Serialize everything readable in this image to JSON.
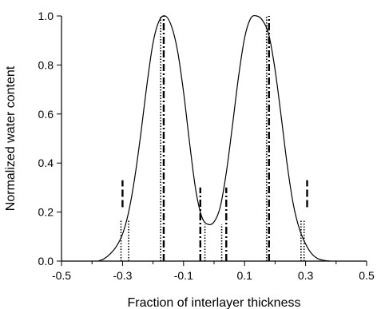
{
  "chart_data": {
    "type": "line",
    "title": "",
    "xlabel": "Fraction of interlayer thickness",
    "ylabel": "Normalized water content",
    "xlim": [
      -0.5,
      0.5
    ],
    "ylim": [
      0.0,
      1.0
    ],
    "x_ticks": [
      -0.5,
      -0.3,
      -0.1,
      0.1,
      0.3,
      0.5
    ],
    "x_tick_labels": [
      "-0.5",
      "-0.3",
      "-0.1",
      "0.1",
      "0.3",
      "0.5"
    ],
    "y_ticks": [
      0.0,
      0.2,
      0.4,
      0.6,
      0.8,
      1.0
    ],
    "y_tick_labels": [
      "0.0",
      "0.2",
      "0.4",
      "0.6",
      "0.8",
      "1.0"
    ],
    "grid": false,
    "legend": "none",
    "series": [
      {
        "style": "solid",
        "x": [
          -0.38,
          -0.36,
          -0.34,
          -0.32,
          -0.3,
          -0.28,
          -0.26,
          -0.24,
          -0.22,
          -0.2,
          -0.18,
          -0.16,
          -0.14,
          -0.12,
          -0.1,
          -0.08,
          -0.06,
          -0.04,
          -0.02,
          0.0,
          0.02,
          0.04,
          0.06,
          0.08,
          0.1,
          0.12,
          0.14,
          0.16,
          0.18,
          0.2,
          0.22,
          0.24,
          0.26,
          0.28,
          0.3,
          0.32,
          0.34,
          0.36,
          0.38
        ],
        "y": [
          0.0,
          0.01,
          0.03,
          0.06,
          0.11,
          0.2,
          0.34,
          0.52,
          0.72,
          0.89,
          0.98,
          1.0,
          0.96,
          0.86,
          0.69,
          0.48,
          0.29,
          0.18,
          0.15,
          0.16,
          0.22,
          0.36,
          0.55,
          0.75,
          0.91,
          0.99,
          1.0,
          0.98,
          0.92,
          0.78,
          0.59,
          0.39,
          0.23,
          0.13,
          0.07,
          0.03,
          0.01,
          0.003,
          0.0
        ]
      }
    ],
    "vertical_markers": [
      {
        "x": -0.305,
        "y_from": 0.0,
        "y_to": 0.17,
        "style": "dotted"
      },
      {
        "x": -0.28,
        "y_from": 0.0,
        "y_to": 0.17,
        "style": "dotted"
      },
      {
        "x": -0.3,
        "y_from": 0.22,
        "y_to": 0.33,
        "style": "dashed"
      },
      {
        "x": -0.175,
        "y_from": 0.0,
        "y_to": 1.0,
        "style": "dotted"
      },
      {
        "x": -0.165,
        "y_from": 0.0,
        "y_to": 1.0,
        "style": "dashdot"
      },
      {
        "x": -0.03,
        "y_from": 0.0,
        "y_to": 0.15,
        "style": "dotted"
      },
      {
        "x": 0.025,
        "y_from": 0.0,
        "y_to": 0.15,
        "style": "dotted"
      },
      {
        "x": -0.045,
        "y_from": 0.0,
        "y_to": 0.3,
        "style": "dashdot"
      },
      {
        "x": 0.04,
        "y_from": 0.0,
        "y_to": 0.3,
        "style": "dashdot"
      },
      {
        "x": 0.172,
        "y_from": 0.0,
        "y_to": 1.0,
        "style": "dotted"
      },
      {
        "x": 0.18,
        "y_from": 0.0,
        "y_to": 1.0,
        "style": "dashdot"
      },
      {
        "x": 0.285,
        "y_from": 0.0,
        "y_to": 0.17,
        "style": "dotted"
      },
      {
        "x": 0.295,
        "y_from": 0.0,
        "y_to": 0.17,
        "style": "dotted"
      },
      {
        "x": 0.305,
        "y_from": 0.22,
        "y_to": 0.33,
        "style": "dashed"
      }
    ]
  }
}
